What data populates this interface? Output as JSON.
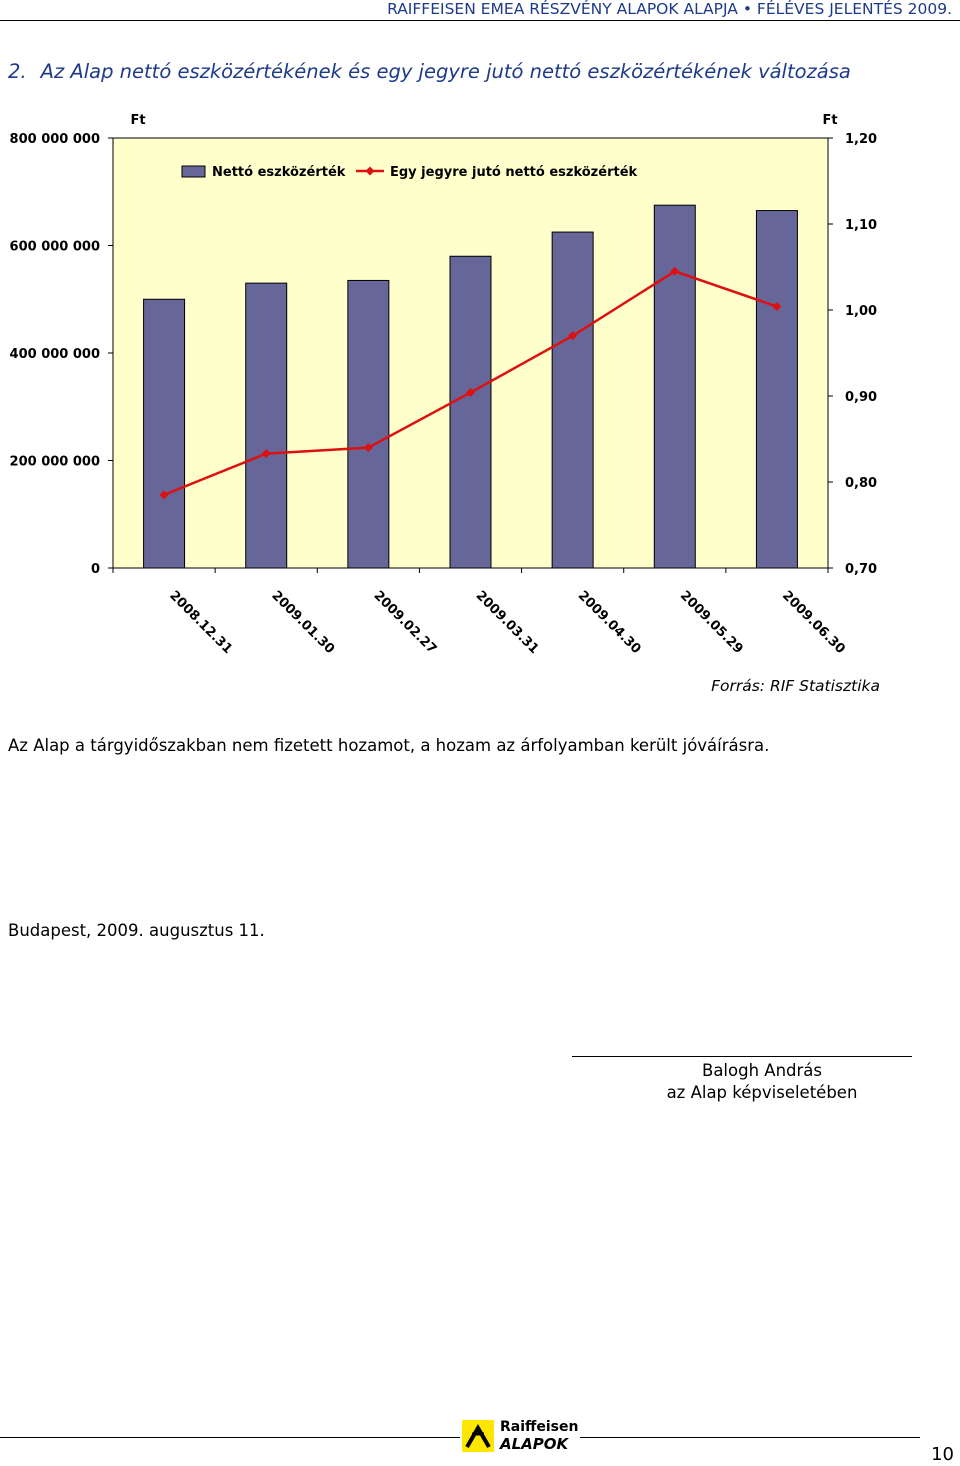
{
  "header": {
    "text": "RAIFFEISEN EMEA RÉSZVÉNY ALAPOK ALAPJA • FÉLÉVES JELENTÉS 2009."
  },
  "section": {
    "number": "2.",
    "title": "Az Alap nettó eszközértékének és egy jegyre jutó nettó eszközértékének változása"
  },
  "chart_data": {
    "type": "bar",
    "categories": [
      "2008.12.31",
      "2009.01.30",
      "2009.02.27",
      "2009.03.31",
      "2009.04.30",
      "2009.05.29",
      "2009.06.30"
    ],
    "series": [
      {
        "name": "Nettó eszközérték",
        "type": "bar",
        "axis": "left",
        "color": "#666699",
        "values": [
          500000000,
          530000000,
          535000000,
          580000000,
          625000000,
          675000000,
          665000000
        ]
      },
      {
        "name": "Egy jegyre jutó nettó eszközérték",
        "type": "line",
        "axis": "right",
        "color": "#dd1111",
        "values": [
          0.785,
          0.833,
          0.84,
          0.904,
          0.97,
          1.045,
          1.004
        ]
      }
    ],
    "y_left": {
      "unit": "Ft",
      "ylim": [
        0,
        800000000
      ],
      "ticks": [
        "0",
        "200 000 000",
        "400 000 000",
        "600 000 000",
        "800 000 000"
      ]
    },
    "y_right": {
      "unit": "Ft",
      "ylim": [
        0.7,
        1.2
      ],
      "ticks": [
        "0,70",
        "0,80",
        "0,90",
        "1,00",
        "1,10",
        "1,20"
      ]
    },
    "grid": false,
    "legend": "top",
    "plot_background": "#ffffcc"
  },
  "source": "Forrás: RIF Statisztika",
  "paragraph": "Az Alap a tárgyidőszakban nem fizetett hozamot, a hozam az árfolyamban került jóváírásra.",
  "date_line": "Budapest, 2009. augusztus 11.",
  "signature": {
    "name": "Balogh  András",
    "role": "az Alap képviseletében"
  },
  "logo": {
    "brand": "Raiffeisen",
    "sub": "ALAPOK"
  },
  "page_number": "10"
}
